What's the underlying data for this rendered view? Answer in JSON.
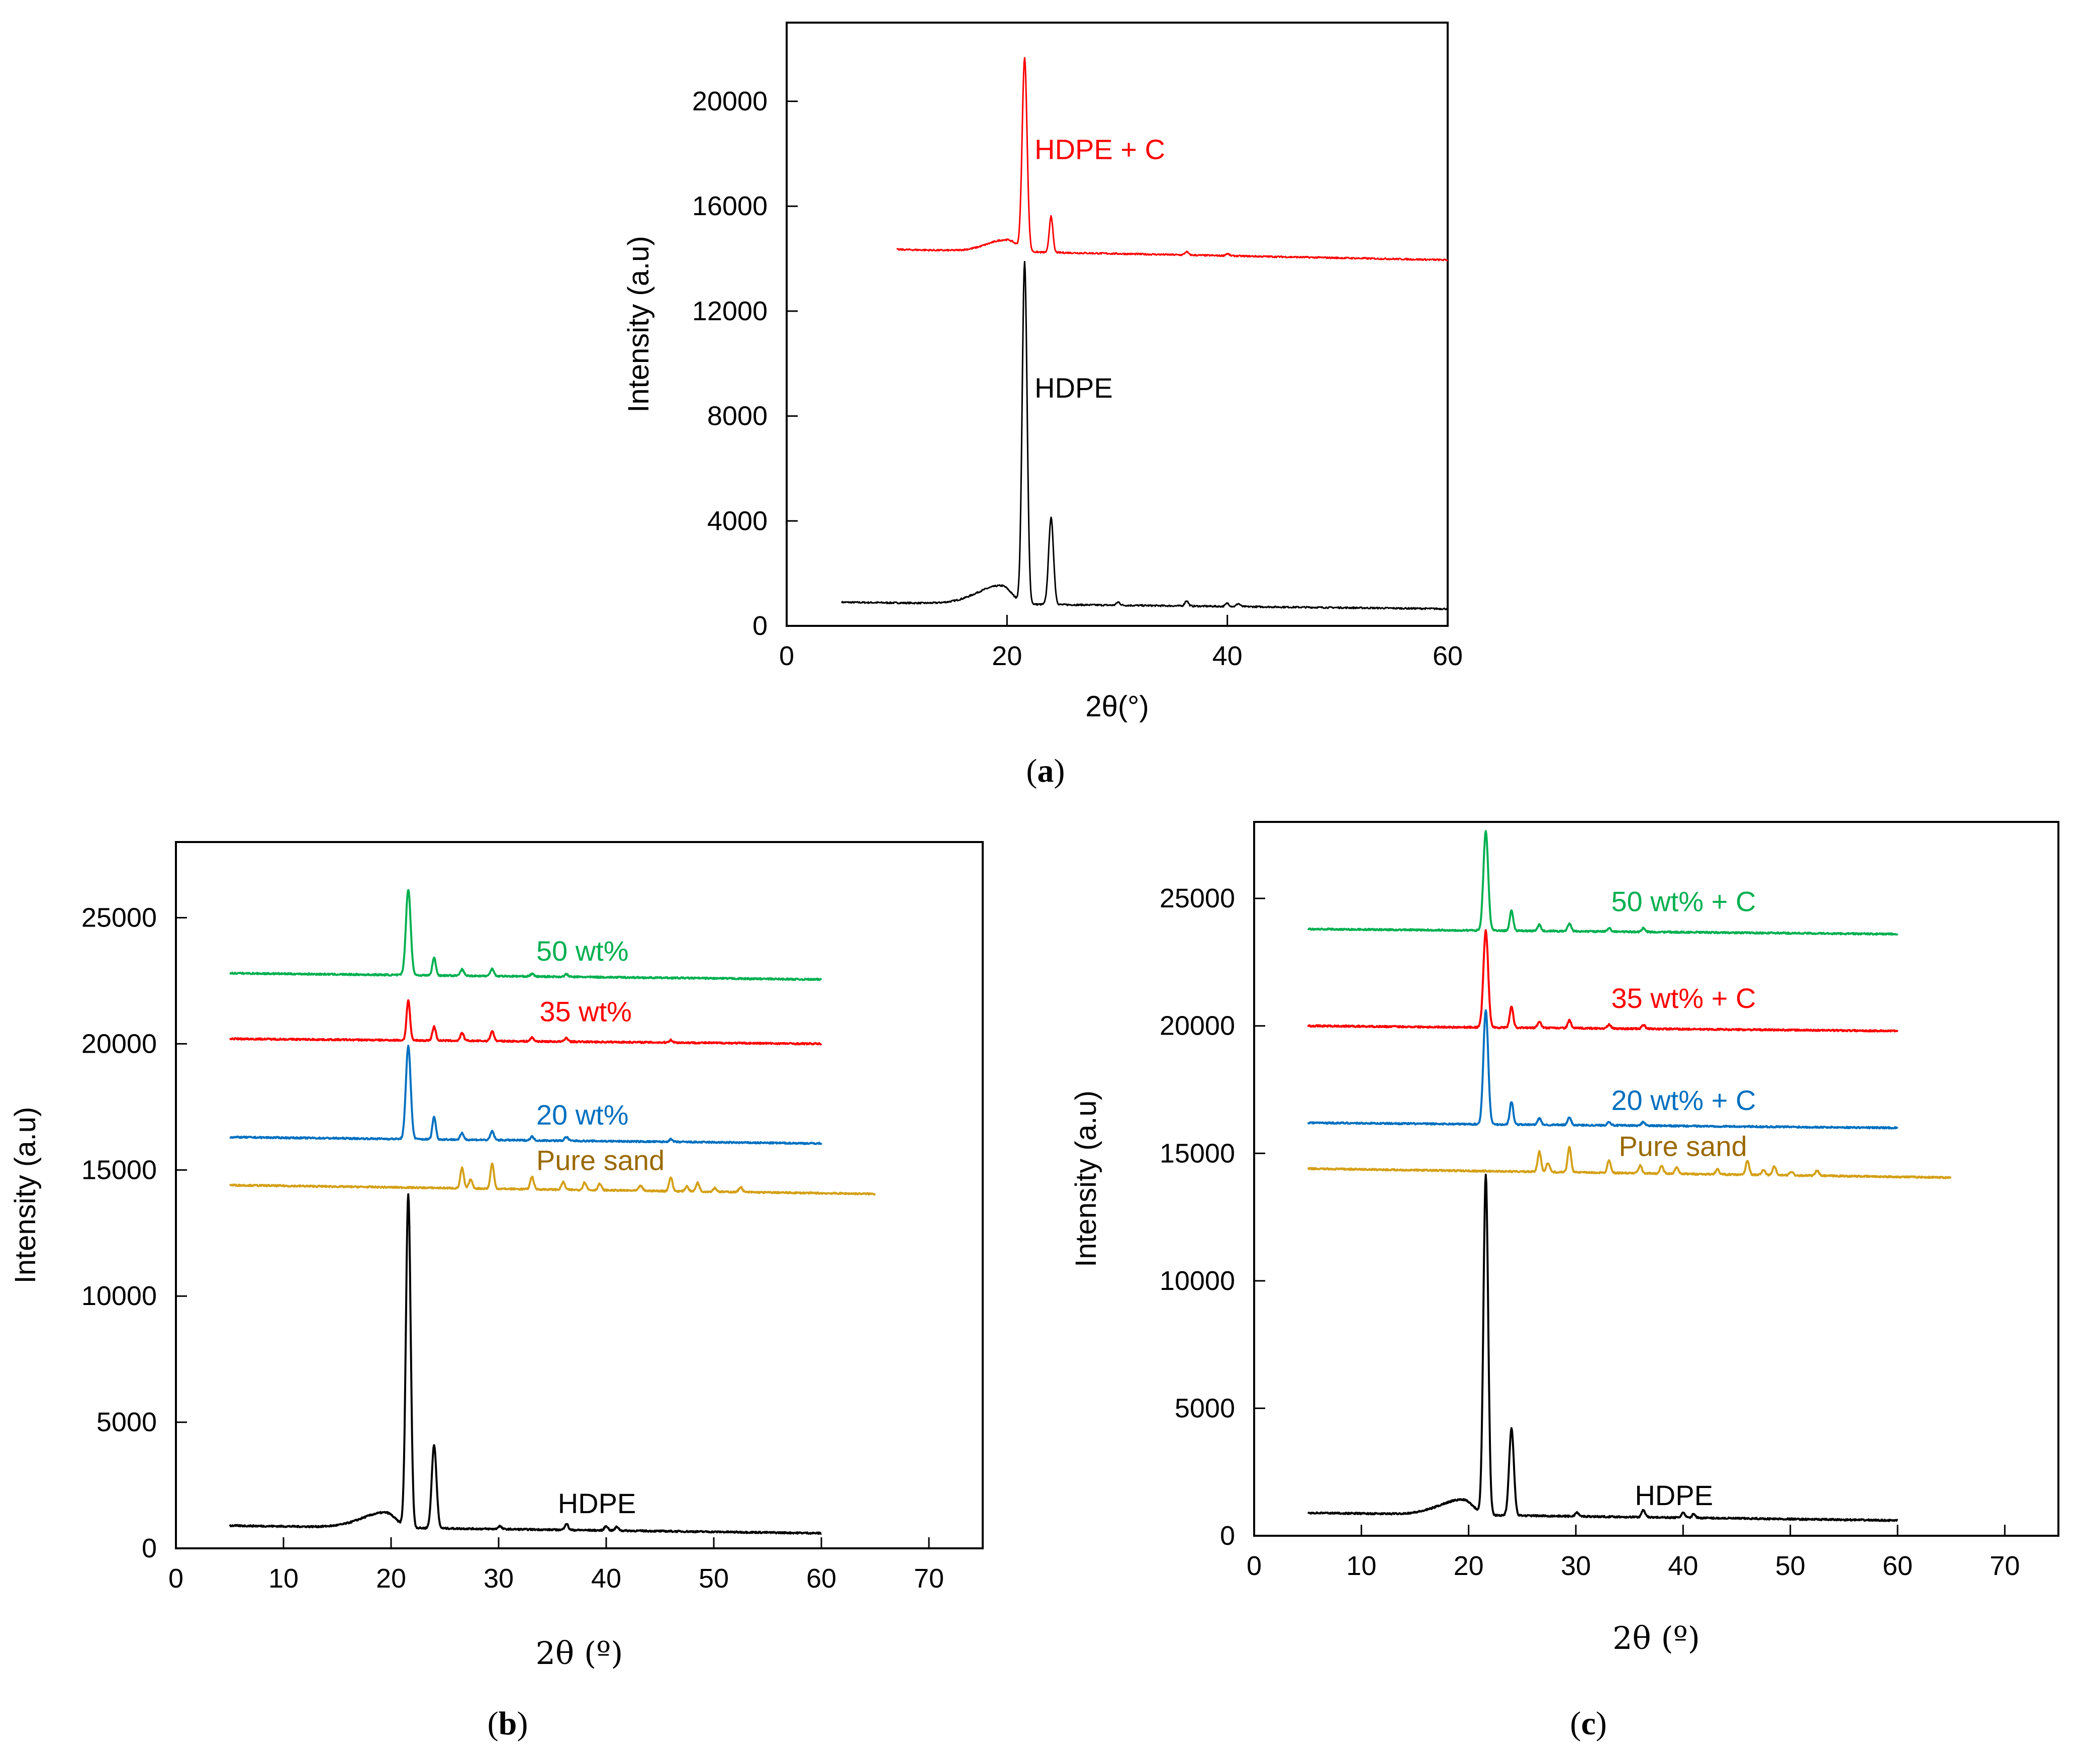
{
  "chart_data": [
    {
      "panel": "a",
      "caption_open": "(",
      "caption_letter": "a",
      "caption_close": ")",
      "type": "line",
      "title": "",
      "xlabel": "2θ(°)",
      "ylabel": "Intensity (a.u)",
      "xlim": [
        0,
        60
      ],
      "ylim": [
        0,
        23000
      ],
      "xticks": [
        0,
        20,
        40,
        60
      ],
      "yticks": [
        0,
        4000,
        8000,
        12000,
        16000,
        20000
      ],
      "series": [
        {
          "name": "HDPE",
          "label": "HDPE",
          "color": "#000000",
          "xrange": [
            5,
            60
          ],
          "base": [
            900,
            650
          ],
          "hump": {
            "amp": 700,
            "center": 19.5,
            "width": 2.2
          },
          "peaks": [
            [
              21.6,
              13000
            ],
            [
              24.0,
              3300
            ],
            [
              30.1,
              120
            ],
            [
              36.3,
              200
            ],
            [
              40.0,
              120
            ],
            [
              41.0,
              110
            ]
          ],
          "label_x": 22.5,
          "label_y": 8700
        },
        {
          "name": "HDPE + C",
          "label": "HDPE + C",
          "color": "#ff0000",
          "xrange": [
            10,
            60
          ],
          "base": [
            14350,
            13950
          ],
          "hump": {
            "amp": 450,
            "center": 20.0,
            "width": 1.8
          },
          "peaks": [
            [
              21.6,
              7300
            ],
            [
              24.0,
              1400
            ],
            [
              36.3,
              120
            ],
            [
              40.0,
              80
            ]
          ],
          "label_x": 22.5,
          "label_y": 17800
        }
      ]
    },
    {
      "panel": "b",
      "caption_open": "(",
      "caption_letter": "b",
      "caption_close": ")",
      "type": "line",
      "title": "",
      "xlabel": "2θ (º)",
      "ylabel": "Intensity (a.u)",
      "xlim": [
        0,
        75
      ],
      "ylim": [
        0,
        28000
      ],
      "xticks": [
        0,
        10,
        20,
        30,
        40,
        50,
        60,
        70
      ],
      "yticks": [
        0,
        5000,
        10000,
        15000,
        20000,
        25000
      ],
      "series": [
        {
          "name": "HDPE",
          "label": "HDPE",
          "color": "#000000",
          "xrange": [
            5,
            60
          ],
          "base": [
            900,
            600
          ],
          "hump": {
            "amp": 600,
            "center": 19.5,
            "width": 2.2
          },
          "peaks": [
            [
              21.6,
              13200
            ],
            [
              24.0,
              3300
            ],
            [
              30.1,
              120
            ],
            [
              36.3,
              250
            ],
            [
              40.0,
              180
            ],
            [
              41.0,
              150
            ]
          ],
          "label_x": 35.5,
          "label_y": 1400
        },
        {
          "name": "Pure sand",
          "label": "Pure sand",
          "color": "#d4a017",
          "xrange": [
            5,
            65
          ],
          "base": [
            14400,
            14050
          ],
          "peaks": [
            [
              26.6,
              800
            ],
            [
              27.4,
              350
            ],
            [
              29.4,
              1000
            ],
            [
              33.1,
              500
            ],
            [
              36.0,
              300
            ],
            [
              38.0,
              300
            ],
            [
              39.4,
              250
            ],
            [
              43.2,
              200
            ],
            [
              46.0,
              550
            ],
            [
              47.5,
              200
            ],
            [
              48.5,
              350
            ],
            [
              50.1,
              150
            ],
            [
              52.5,
              200
            ]
          ],
          "label_x": 33.5,
          "label_y": 15000,
          "label_color": "#9a6a00"
        },
        {
          "name": "20 wt%",
          "label": "20 wt%",
          "color": "#0070c0",
          "xrange": [
            5,
            60
          ],
          "base": [
            16300,
            16050
          ],
          "peaks": [
            [
              21.6,
              3700
            ],
            [
              24.0,
              900
            ],
            [
              26.6,
              250
            ],
            [
              29.4,
              350
            ],
            [
              33.1,
              150
            ],
            [
              36.3,
              150
            ],
            [
              46.0,
              100
            ]
          ],
          "label_x": 33.5,
          "label_y": 16800
        },
        {
          "name": "35 wt%",
          "label": "35 wt%",
          "color": "#ff0000",
          "xrange": [
            5,
            60
          ],
          "base": [
            20200,
            20000
          ],
          "peaks": [
            [
              21.6,
              1600
            ],
            [
              24.0,
              550
            ],
            [
              26.6,
              300
            ],
            [
              29.4,
              400
            ],
            [
              33.1,
              150
            ],
            [
              36.3,
              150
            ],
            [
              46.0,
              100
            ]
          ],
          "label_x": 33.8,
          "label_y": 20900
        },
        {
          "name": "50 wt%",
          "label": "50 wt%",
          "color": "#00b050",
          "xrange": [
            5,
            60
          ],
          "base": [
            22800,
            22550
          ],
          "peaks": [
            [
              21.6,
              3400
            ],
            [
              24.0,
              700
            ],
            [
              26.6,
              250
            ],
            [
              29.4,
              300
            ],
            [
              33.1,
              100
            ],
            [
              36.3,
              100
            ]
          ],
          "label_x": 33.5,
          "label_y": 23300
        }
      ]
    },
    {
      "panel": "c",
      "caption_open": "(",
      "caption_letter": "c",
      "caption_close": ")",
      "type": "line",
      "title": "",
      "xlabel": "2θ (º)",
      "ylabel": "Intensity (a.u)",
      "xlim": [
        0,
        75
      ],
      "ylim": [
        0,
        28000
      ],
      "xticks": [
        0,
        10,
        20,
        30,
        40,
        50,
        60,
        70
      ],
      "yticks": [
        0,
        5000,
        10000,
        15000,
        20000,
        25000
      ],
      "series": [
        {
          "name": "HDPE",
          "label": "HDPE",
          "color": "#000000",
          "xrange": [
            5,
            60
          ],
          "base": [
            900,
            600
          ],
          "hump": {
            "amp": 600,
            "center": 19.5,
            "width": 2.2
          },
          "peaks": [
            [
              21.6,
              13300
            ],
            [
              24.0,
              3400
            ],
            [
              30.1,
              150
            ],
            [
              36.3,
              300
            ],
            [
              40.0,
              200
            ],
            [
              41.0,
              150
            ]
          ],
          "label_x": 35.5,
          "label_y": 1200
        },
        {
          "name": "Pure sand",
          "label": "Pure sand",
          "color": "#d4a017",
          "xrange": [
            5,
            65
          ],
          "base": [
            14400,
            14050
          ],
          "peaks": [
            [
              26.6,
              800
            ],
            [
              27.4,
              350
            ],
            [
              29.4,
              1000
            ],
            [
              33.1,
              500
            ],
            [
              36.0,
              300
            ],
            [
              38.0,
              300
            ],
            [
              39.4,
              250
            ],
            [
              43.2,
              200
            ],
            [
              46.0,
              550
            ],
            [
              47.5,
              200
            ],
            [
              48.5,
              350
            ],
            [
              50.1,
              150
            ],
            [
              52.5,
              200
            ]
          ],
          "label_x": 34.0,
          "label_y": 14900,
          "label_color": "#9a6a00"
        },
        {
          "name": "20 wt% + C",
          "label": "20 wt% + C",
          "color": "#0070c0",
          "xrange": [
            5,
            60
          ],
          "base": [
            16200,
            16000
          ],
          "peaks": [
            [
              21.6,
              4500
            ],
            [
              24.0,
              900
            ],
            [
              26.6,
              250
            ],
            [
              29.4,
              300
            ],
            [
              33.1,
              150
            ],
            [
              36.3,
              150
            ]
          ],
          "label_x": 33.3,
          "label_y": 16700
        },
        {
          "name": "35 wt% + C",
          "label": "35 wt% + C",
          "color": "#ff0000",
          "xrange": [
            5,
            60
          ],
          "base": [
            20000,
            19800
          ],
          "peaks": [
            [
              21.6,
              3800
            ],
            [
              24.0,
              850
            ],
            [
              26.6,
              250
            ],
            [
              29.4,
              300
            ],
            [
              33.1,
              150
            ],
            [
              36.3,
              150
            ]
          ],
          "label_x": 33.3,
          "label_y": 20700
        },
        {
          "name": "50 wt% + C",
          "label": "50 wt% + C",
          "color": "#00b050",
          "xrange": [
            5,
            60
          ],
          "base": [
            23800,
            23600
          ],
          "peaks": [
            [
              21.6,
              3900
            ],
            [
              24.0,
              800
            ],
            [
              26.6,
              250
            ],
            [
              29.4,
              300
            ],
            [
              33.1,
              150
            ],
            [
              36.3,
              150
            ]
          ],
          "label_x": 33.3,
          "label_y": 24500
        }
      ]
    }
  ]
}
